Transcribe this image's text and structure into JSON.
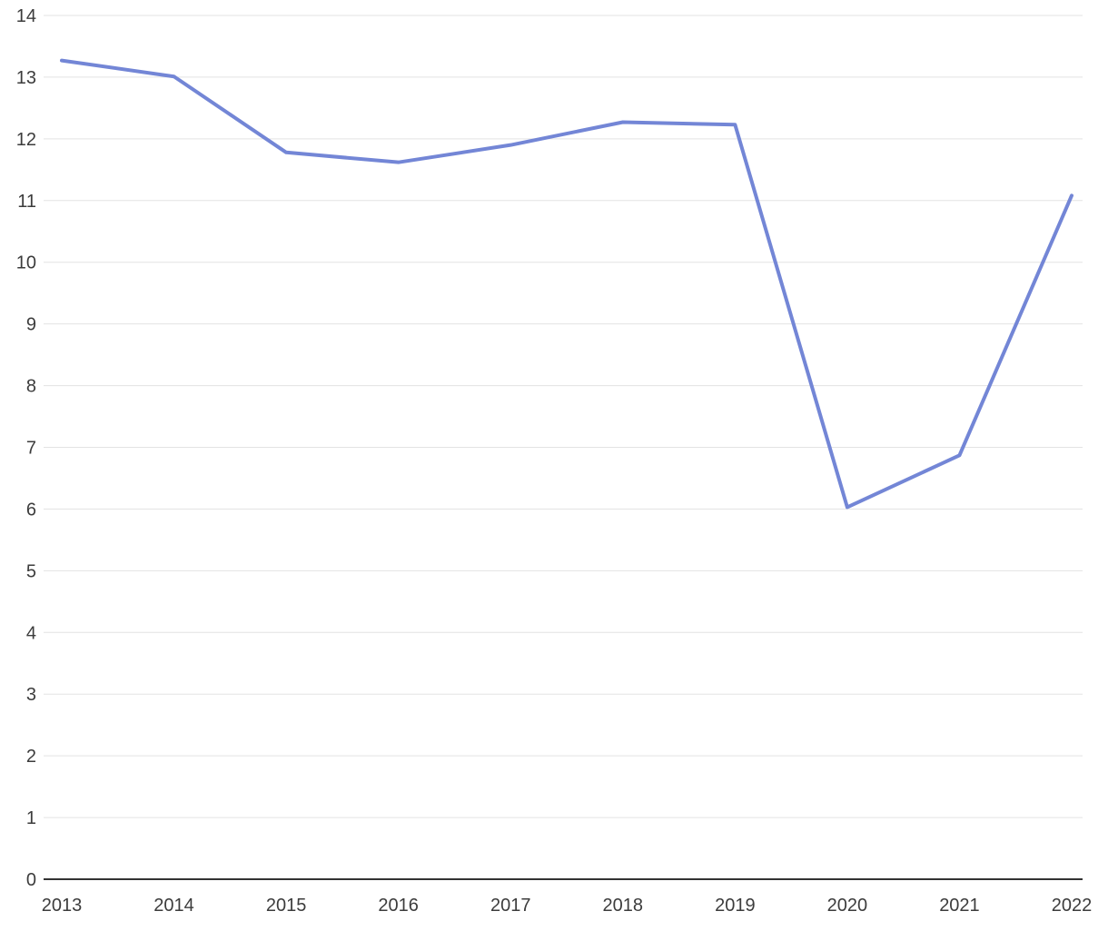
{
  "chart_data": {
    "type": "line",
    "categories": [
      "2013",
      "2014",
      "2015",
      "2016",
      "2017",
      "2018",
      "2019",
      "2020",
      "2021",
      "2022"
    ],
    "series": [
      {
        "name": "series-1",
        "values": [
          13.27,
          13.01,
          11.78,
          11.62,
          11.9,
          12.27,
          12.23,
          6.03,
          6.87,
          11.08
        ]
      }
    ],
    "title": "",
    "xlabel": "",
    "ylabel": "",
    "ylim": [
      0,
      14
    ],
    "y_tick_interval": 1,
    "y_tick_labels": [
      "0",
      "1",
      "2",
      "3",
      "4",
      "5",
      "6",
      "7",
      "8",
      "9",
      "10",
      "11",
      "12",
      "13",
      "14"
    ],
    "grid": true,
    "legend_position": "none",
    "colors": {
      "line": "#7386d6",
      "grid": "#e3e3e3",
      "axis": "#333333",
      "label": "#3c3c3c"
    }
  }
}
